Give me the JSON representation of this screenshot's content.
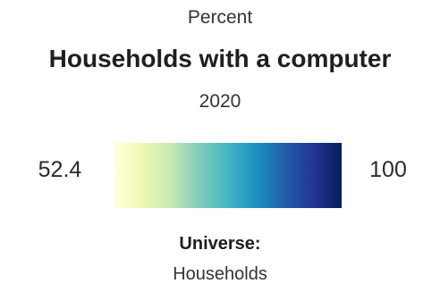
{
  "legend": {
    "unit": "Percent",
    "title": "Households with a computer",
    "year": "2020",
    "min_value": "52.4",
    "max_value": "100",
    "scale_colors": [
      "#ffffd9",
      "#edf8b1",
      "#c7e9b4",
      "#7fcdbb",
      "#41b6c4",
      "#1d91c0",
      "#225ea8",
      "#253494",
      "#081d58"
    ],
    "universe_label": "Universe:",
    "universe_value": "Households"
  }
}
